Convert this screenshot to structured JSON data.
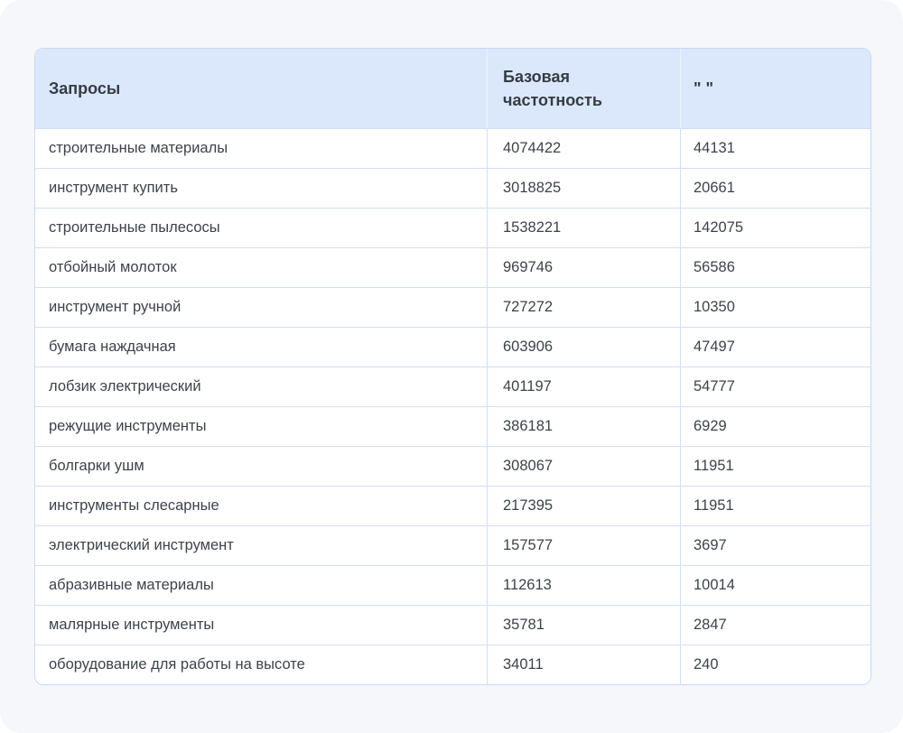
{
  "page": {
    "background_color": "#f5f7fa",
    "header_background_color": "#dbe8fc",
    "border_color": "#c7daf2",
    "row_separator_color": "#cfe0f5",
    "text_color": "#3d424b"
  },
  "table": {
    "columns": [
      {
        "key": "query",
        "label": "Запросы"
      },
      {
        "key": "base_frequency",
        "label": "Базовая частотность"
      },
      {
        "key": "quoted_frequency",
        "label": "\" \""
      }
    ],
    "rows": [
      {
        "query": "строительные материалы",
        "base_frequency": "4074422",
        "quoted_frequency": "44131"
      },
      {
        "query": "инструмент купить",
        "base_frequency": "3018825",
        "quoted_frequency": "20661"
      },
      {
        "query": "строительные пылесосы",
        "base_frequency": "1538221",
        "quoted_frequency": "142075"
      },
      {
        "query": "отбойный молоток",
        "base_frequency": "969746",
        "quoted_frequency": "56586"
      },
      {
        "query": "инструмент ручной",
        "base_frequency": "727272",
        "quoted_frequency": "10350"
      },
      {
        "query": "бумага наждачная",
        "base_frequency": "603906",
        "quoted_frequency": "47497"
      },
      {
        "query": "лобзик электрический",
        "base_frequency": "401197",
        "quoted_frequency": "54777"
      },
      {
        "query": "режущие инструменты",
        "base_frequency": "386181",
        "quoted_frequency": "6929"
      },
      {
        "query": "болгарки ушм",
        "base_frequency": "308067",
        "quoted_frequency": "11951"
      },
      {
        "query": "инструменты слесарные",
        "base_frequency": "217395",
        "quoted_frequency": "11951"
      },
      {
        "query": "электрический инструмент",
        "base_frequency": "157577",
        "quoted_frequency": "3697"
      },
      {
        "query": "абразивные материалы",
        "base_frequency": "112613",
        "quoted_frequency": "10014"
      },
      {
        "query": "малярные инструменты",
        "base_frequency": "35781",
        "quoted_frequency": "2847"
      },
      {
        "query": "оборудование для работы на высоте",
        "base_frequency": "34011",
        "quoted_frequency": "240"
      }
    ]
  }
}
